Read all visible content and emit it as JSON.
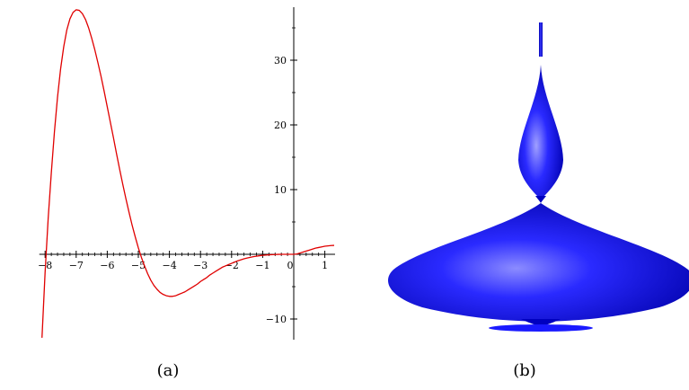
{
  "captions": {
    "a": "(a)",
    "b": "(b)"
  },
  "colors": {
    "curve": "#e00000",
    "axis": "#000000",
    "solid": "#1a1aff",
    "solid_dark": "#0000b0",
    "solid_light": "#8c8cff"
  },
  "chart_data": [
    {
      "type": "line",
      "title": "",
      "xlabel": "",
      "ylabel": "",
      "xlim": [
        -8.1,
        1.3
      ],
      "ylim": [
        -13,
        38
      ],
      "x_ticks": [
        -8,
        -7,
        -6,
        -5,
        -4,
        -3,
        -2,
        -1,
        0,
        1
      ],
      "x_tick_labels": [
        "-8",
        "-7",
        "-6",
        "-5",
        "-4",
        "-3",
        "-2",
        "-1",
        "0",
        "1"
      ],
      "y_ticks": [
        -10,
        10,
        20,
        30
      ],
      "y_tick_labels": [
        "-10",
        "10",
        "20",
        "30"
      ],
      "grid": false,
      "series": [
        {
          "x": [
            -8.1,
            -8.0,
            -7.9,
            -7.8,
            -7.7,
            -7.6,
            -7.5,
            -7.4,
            -7.3,
            -7.2,
            -7.1,
            -7.0,
            -6.9,
            -6.8,
            -6.7,
            -6.6,
            -6.5,
            -6.4,
            -6.3,
            -6.2,
            -6.1,
            -6.0,
            -5.9,
            -5.8,
            -5.7,
            -5.6,
            -5.5,
            -5.4,
            -5.3,
            -5.2,
            -5.1,
            -5.0,
            -4.9,
            -4.8,
            -4.7,
            -4.6,
            -4.5,
            -4.4,
            -4.3,
            -4.2,
            -4.1,
            -4.0,
            -3.9,
            -3.8,
            -3.7,
            -3.6,
            -3.5,
            -3.4,
            -3.3,
            -3.2,
            -3.1,
            -3.0,
            -2.9,
            -2.8,
            -2.7,
            -2.6,
            -2.5,
            -2.4,
            -2.3,
            -2.2,
            -2.1,
            -2.0,
            -1.9,
            -1.8,
            -1.7,
            -1.6,
            -1.5,
            -1.4,
            -1.3,
            -1.2,
            -1.1,
            -1.0,
            -0.9,
            -0.8,
            -0.7,
            -0.6,
            -0.5,
            -0.4,
            -0.3,
            -0.2,
            -0.1,
            0.0,
            0.1,
            0.2,
            0.3,
            0.4,
            0.5,
            0.6,
            0.7,
            0.8,
            0.9,
            1.0,
            1.1,
            1.2,
            1.3
          ],
          "y": [
            -12.9,
            -2.8,
            5.6,
            12.6,
            18.9,
            24.3,
            28.7,
            32.1,
            34.7,
            36.4,
            37.4,
            37.8,
            37.7,
            37.2,
            36.3,
            35.0,
            33.4,
            31.6,
            29.6,
            27.5,
            25.2,
            22.8,
            20.4,
            18.0,
            15.5,
            13.1,
            10.8,
            8.6,
            6.5,
            4.5,
            2.7,
            1.0,
            -0.5,
            -1.8,
            -3.0,
            -4.0,
            -4.8,
            -5.4,
            -5.9,
            -6.2,
            -6.4,
            -6.5,
            -6.5,
            -6.4,
            -6.2,
            -6.0,
            -5.8,
            -5.5,
            -5.2,
            -4.9,
            -4.6,
            -4.2,
            -3.9,
            -3.6,
            -3.2,
            -2.9,
            -2.6,
            -2.3,
            -2.0,
            -1.8,
            -1.6,
            -1.4,
            -1.2,
            -1.0,
            -0.85,
            -0.7,
            -0.58,
            -0.47,
            -0.37,
            -0.29,
            -0.22,
            -0.16,
            -0.12,
            -0.08,
            -0.05,
            -0.03,
            -0.01,
            0.0,
            0.0,
            0.0,
            0.0,
            0.0,
            0.05,
            0.2,
            0.35,
            0.5,
            0.65,
            0.8,
            0.95,
            1.05,
            1.15,
            1.25,
            1.3,
            1.35,
            1.38
          ]
        }
      ]
    }
  ]
}
